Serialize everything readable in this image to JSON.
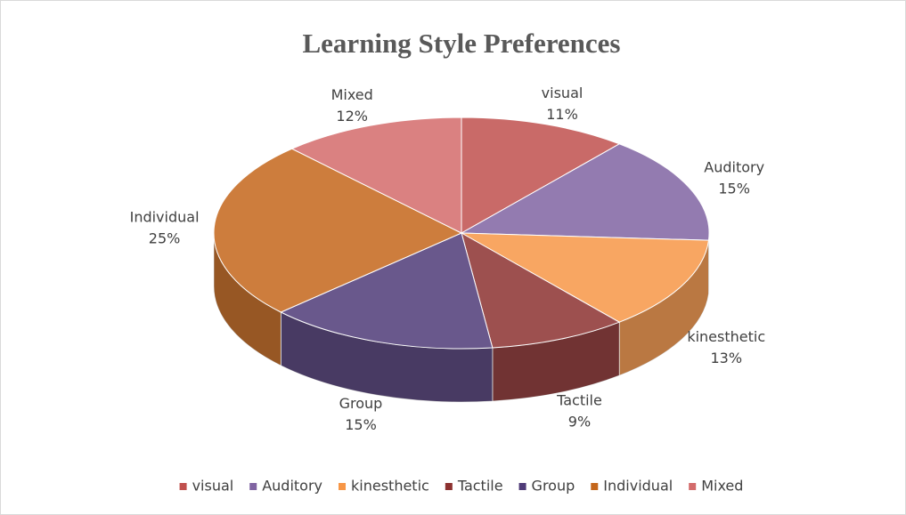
{
  "chart_data": {
    "type": "pie3d",
    "title": "Learning Style Preferences",
    "categories": [
      "visual",
      "Auditory",
      "kinesthetic",
      "Tactile",
      "Group",
      "Individual",
      "Mixed"
    ],
    "values": [
      11,
      15,
      13,
      9,
      15,
      25,
      12
    ],
    "value_labels": [
      "11%",
      "15%",
      "13%",
      "9%",
      "15%",
      "25%",
      "12%"
    ],
    "colors": [
      "#c0504d",
      "#8064a2",
      "#f79646",
      "#8c3130",
      "#4f3b78",
      "#c4661b",
      "#d36b6b"
    ],
    "legend": "bottom"
  }
}
